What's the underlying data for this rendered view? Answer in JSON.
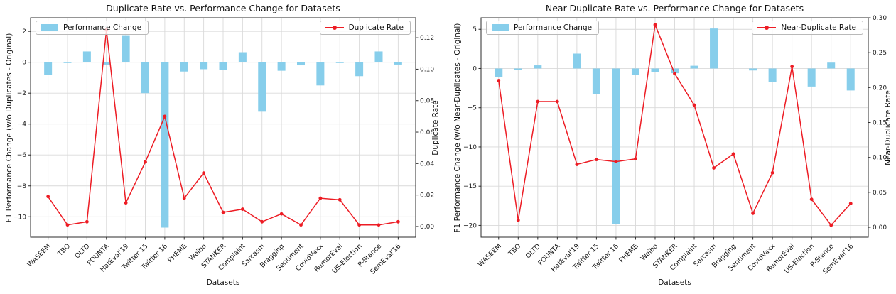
{
  "chart_data": [
    {
      "type": "bar+line",
      "title": "Duplicate Rate vs. Performance Change for Datasets",
      "xlabel": "Datasets",
      "ylabel": "F1 Performance Change (w/o Duplicates - Original)",
      "y2label": "Duplicate Rate",
      "grid": true,
      "legend_positions": [
        "upper left",
        "upper right"
      ],
      "categories": [
        "WASEEM",
        "TBO",
        "OLTD",
        "FOUNTA",
        "HatEval'19",
        "Twitter 15",
        "Twitter 16",
        "PHEME",
        "Weibo",
        "STANKER",
        "Complaint",
        "Sarcasm",
        "Bragging",
        "Sentiment",
        "CovidVaxx",
        "RumorEval",
        "US-Election",
        "P-Stance",
        "SemEval'16"
      ],
      "series": [
        {
          "name": "Performance Change",
          "type": "bar",
          "axis": "left",
          "color": "#87CEEB",
          "values": [
            -0.8,
            -0.05,
            0.7,
            -0.15,
            1.75,
            -2.0,
            -10.7,
            -0.6,
            -0.45,
            -0.5,
            0.65,
            -3.2,
            -0.55,
            -0.2,
            -1.5,
            -0.05,
            -0.9,
            0.7,
            -0.15
          ]
        },
        {
          "name": "Duplicate Rate",
          "type": "line",
          "axis": "right",
          "color": "#ed1c24",
          "values": [
            0.019,
            0.001,
            0.003,
            0.125,
            0.015,
            0.041,
            0.07,
            0.018,
            0.034,
            0.009,
            0.011,
            0.003,
            0.008,
            0.001,
            0.018,
            0.017,
            0.001,
            0.001,
            0.003
          ]
        }
      ],
      "left_axis": {
        "ticks": [
          2,
          0,
          -2,
          -4,
          -6,
          -8,
          -10
        ],
        "min": -11.32,
        "max": 2.88
      },
      "right_axis": {
        "ticks": [
          0.12,
          0.1,
          0.08,
          0.06,
          0.04,
          0.02,
          0.0
        ],
        "min": -0.0068,
        "max": 0.1327,
        "decimals": 2
      }
    },
    {
      "type": "bar+line",
      "title": "Near-Duplicate Rate vs. Performance Change for Datasets",
      "xlabel": "Datasets",
      "ylabel": "F1 Performance Change (w/o Near-Duplicates - Original)",
      "y2label": "Near-Duplicate Rate",
      "grid": true,
      "legend_positions": [
        "upper left",
        "upper right"
      ],
      "categories": [
        "WASEEM",
        "TBO",
        "OLTD",
        "FOUNTA",
        "HatEval'19",
        "Twitter 15",
        "Twitter 16",
        "PHEME",
        "Weibo",
        "STANKER",
        "Complaint",
        "Sarcasm",
        "Bragging",
        "Sentiment",
        "CovidVaxx",
        "RumorEval",
        "US-Election",
        "P-Stance",
        "SemEval'16"
      ],
      "series": [
        {
          "name": "Performance Change",
          "type": "bar",
          "axis": "left",
          "color": "#87CEEB",
          "values": [
            -1.1,
            -0.2,
            0.4,
            0.0,
            1.9,
            -3.3,
            -19.8,
            -0.8,
            -0.45,
            -0.6,
            0.35,
            5.1,
            0.0,
            -0.25,
            -1.7,
            0.0,
            -2.3,
            0.75,
            -2.8
          ]
        },
        {
          "name": "Near-Duplicate Rate",
          "type": "line",
          "axis": "right",
          "color": "#ed1c24",
          "values": [
            0.21,
            0.01,
            0.18,
            0.18,
            0.09,
            0.097,
            0.094,
            0.098,
            0.29,
            0.22,
            0.175,
            0.085,
            0.105,
            0.02,
            0.078,
            0.23,
            0.04,
            0.003,
            0.034
          ]
        }
      ],
      "left_axis": {
        "ticks": [
          5,
          0,
          -5,
          -10,
          -15,
          -20
        ],
        "min": -21.5,
        "max": 6.47
      },
      "right_axis": {
        "ticks": [
          0.3,
          0.25,
          0.2,
          0.15,
          0.1,
          0.05,
          0.0
        ],
        "min": -0.0142,
        "max": 0.3,
        "decimals": 2
      }
    }
  ]
}
